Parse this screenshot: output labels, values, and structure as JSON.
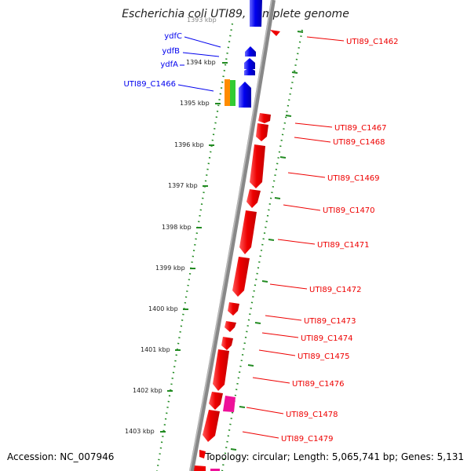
{
  "title": "Escherichia coli UTI89, complete genome",
  "accession_text": "Accession: NC_007946",
  "topology_text": "Topology: circular; Length: 5,065,741 bp; Genes: 5,131",
  "top_cutoff_tick": "1393 kbp",
  "ticks": [
    "1394 kbp",
    "1395 kbp",
    "1396 kbp",
    "1397 kbp",
    "1398 kbp",
    "1399 kbp",
    "1400 kbp",
    "1401 kbp",
    "1402 kbp",
    "1403 kbp"
  ],
  "reverse_genes": [
    "ydfC",
    "ydfB",
    "ydfA",
    "UTI89_C1466"
  ],
  "forward_genes": [
    "UTI89_C1462",
    "UTI89_C1467",
    "UTI89_C1468",
    "UTI89_C1469",
    "UTI89_C1470",
    "UTI89_C1471",
    "UTI89_C1472",
    "UTI89_C1473",
    "UTI89_C1474",
    "UTI89_C1475",
    "UTI89_C1476",
    "UTI89_C1478",
    "UTI89_C1479"
  ],
  "colors": {
    "forward": "#ee0000",
    "reverse": "#0000ee",
    "rna_orange": "#ff8c00",
    "rna_green": "#33cc33",
    "pink": "#ee1199",
    "scale_dots": "#228b22",
    "backbone": "#888888"
  }
}
